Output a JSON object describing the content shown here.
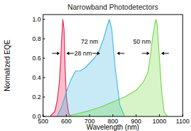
{
  "chart_data": {
    "type": "area",
    "title": "Narrowband Photodetectors",
    "x_label": "Wavelength (nm)",
    "y_label": "Normalized EQE",
    "xlim": [
      500,
      1100
    ],
    "xticks": [
      500,
      600,
      700,
      800,
      900,
      1000,
      1100
    ],
    "ylim": [
      0,
      1.05
    ],
    "yticks": [
      {
        "value": 0,
        "label": "0.0"
      },
      {
        "value": 0.2,
        "label": "0.2"
      },
      {
        "value": 0.4,
        "label": "0.4"
      },
      {
        "value": 0.6,
        "label": "0.6"
      },
      {
        "value": 0.8,
        "label": "0.8"
      },
      {
        "value": 1.0,
        "label": "1.0"
      }
    ],
    "grid": false,
    "series": [
      {
        "color": "#e8174b",
        "x": [
          530,
          550,
          560,
          570,
          575,
          580,
          585,
          590,
          595,
          600,
          610,
          620
        ],
        "values": [
          0,
          0.05,
          0.15,
          0.35,
          0.55,
          0.8,
          1.0,
          0.9,
          0.5,
          0.2,
          0.03,
          0
        ]
      },
      {
        "color": "#3ab5e0",
        "x": [
          560,
          580,
          600,
          620,
          640,
          660,
          680,
          700,
          720,
          740,
          760,
          775,
          785,
          795,
          810,
          830,
          850
        ],
        "values": [
          0,
          0.1,
          0.25,
          0.38,
          0.47,
          0.47,
          0.5,
          0.55,
          0.6,
          0.67,
          0.8,
          0.93,
          1.0,
          0.9,
          0.5,
          0.12,
          0
        ]
      },
      {
        "color": "#6fd63c",
        "x": [
          600,
          650,
          700,
          750,
          800,
          850,
          900,
          930,
          950,
          960,
          970,
          980,
          985,
          990,
          1000,
          1010,
          1020,
          1035
        ],
        "values": [
          0,
          0.03,
          0.06,
          0.1,
          0.15,
          0.2,
          0.27,
          0.35,
          0.45,
          0.6,
          0.8,
          0.95,
          1.0,
          0.95,
          0.6,
          0.25,
          0.05,
          0
        ]
      }
    ],
    "annotations": [
      {
        "text": "28 nm",
        "x": [
          572,
          600
        ],
        "y": 0.65,
        "text_x": 672,
        "text_y": 0.65
      },
      {
        "text": "72 nm",
        "x": [
          745,
          817
        ],
        "y": 0.65,
        "text_x": 700,
        "text_y": 0.77
      },
      {
        "text": "50 nm",
        "x": [
          958,
          1008
        ],
        "y": 0.65,
        "text_x": 925,
        "text_y": 0.77
      }
    ]
  }
}
